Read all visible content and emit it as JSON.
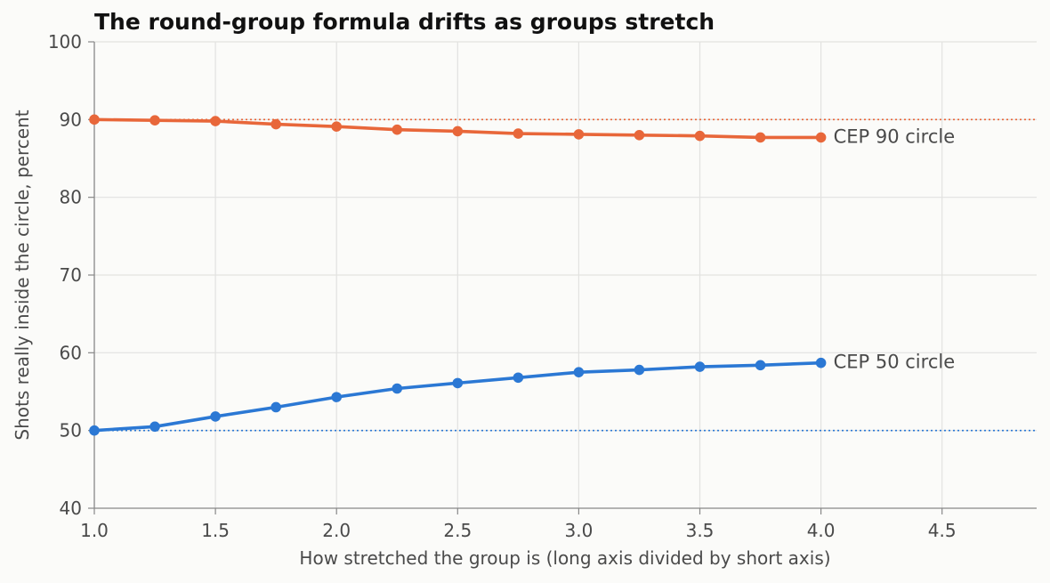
{
  "chart_data": {
    "type": "line",
    "title": "The round-group formula drifts as groups stretch",
    "xlabel": "How stretched the group is (long axis divided by short axis)",
    "ylabel": "Shots really inside the circle, percent",
    "xlim": [
      1.0,
      4.9
    ],
    "ylim": [
      40,
      100
    ],
    "x_ticks": [
      "1.0",
      "1.5",
      "2.0",
      "2.5",
      "3.0",
      "3.5",
      "4.0",
      "4.5"
    ],
    "y_ticks": [
      "40",
      "50",
      "60",
      "70",
      "80",
      "90",
      "100"
    ],
    "grid": true,
    "x": [
      1.0,
      1.25,
      1.5,
      1.75,
      2.0,
      2.25,
      2.5,
      2.75,
      3.0,
      3.25,
      3.5,
      3.75,
      4.0
    ],
    "series": [
      {
        "name": "CEP 90 circle",
        "color": "#e8673a",
        "values": [
          90.0,
          89.9,
          89.8,
          89.4,
          89.1,
          88.7,
          88.5,
          88.2,
          88.1,
          88.0,
          87.9,
          87.7,
          87.7
        ],
        "reference": 90
      },
      {
        "name": "CEP 50 circle",
        "color": "#2b78d4",
        "values": [
          50.0,
          50.5,
          51.8,
          53.0,
          54.3,
          55.4,
          56.1,
          56.8,
          57.5,
          57.8,
          58.2,
          58.4,
          58.7
        ],
        "reference": 50
      }
    ]
  }
}
